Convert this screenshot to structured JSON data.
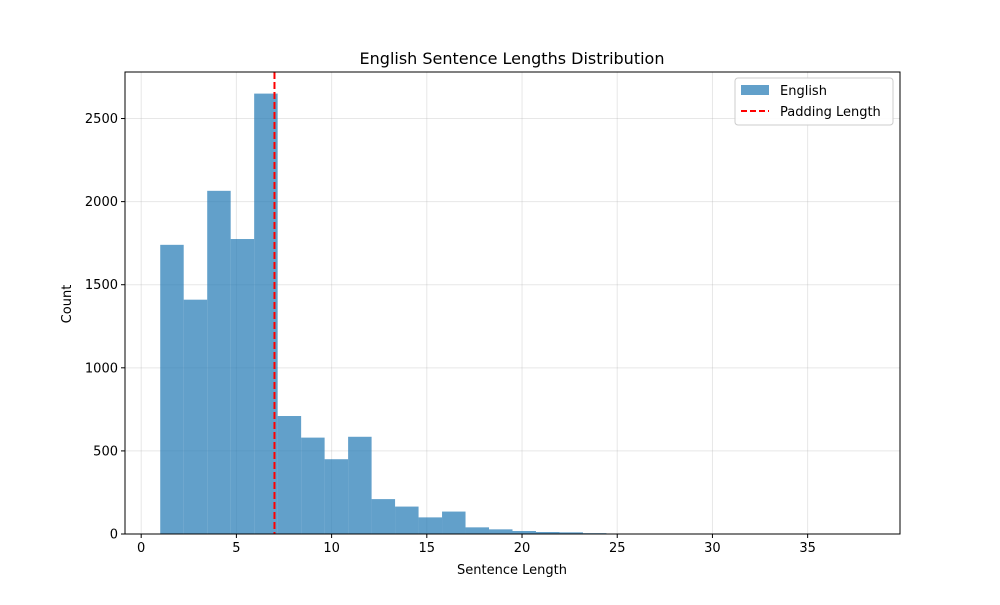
{
  "chart_data": {
    "type": "bar",
    "title": "English Sentence Lengths Distribution",
    "xlabel": "Sentence Length",
    "ylabel": "Count",
    "xlim": [
      -0.85,
      39.85
    ],
    "ylim": [
      0,
      2780
    ],
    "xticks": [
      0,
      5,
      10,
      15,
      20,
      25,
      30,
      35
    ],
    "yticks": [
      0,
      500,
      1000,
      1500,
      2000,
      2500
    ],
    "grid": true,
    "legend_position": "upper right",
    "bin_edges": [
      1,
      2.233,
      3.467,
      4.7,
      5.933,
      7.167,
      8.4,
      9.633,
      10.867,
      12.1,
      13.333,
      14.567,
      15.8,
      17.033,
      18.267,
      19.5,
      20.733,
      21.967,
      23.2,
      24.433,
      25.667,
      26.9,
      28.133,
      29.367,
      30.6,
      31.833,
      33.067,
      34.3,
      35.533,
      36.767,
      38
    ],
    "series": [
      {
        "name": "English",
        "color": "#1f77b4",
        "values": [
          1740,
          1410,
          2065,
          1775,
          2650,
          710,
          580,
          450,
          585,
          210,
          165,
          100,
          135,
          40,
          28,
          18,
          12,
          10,
          5,
          3,
          2,
          2,
          1,
          1,
          1,
          1,
          1,
          1,
          1,
          1
        ]
      }
    ],
    "reference_lines": [
      {
        "name": "Padding Length",
        "x": 7,
        "color": "#ff0000",
        "style": "dashed"
      }
    ]
  }
}
